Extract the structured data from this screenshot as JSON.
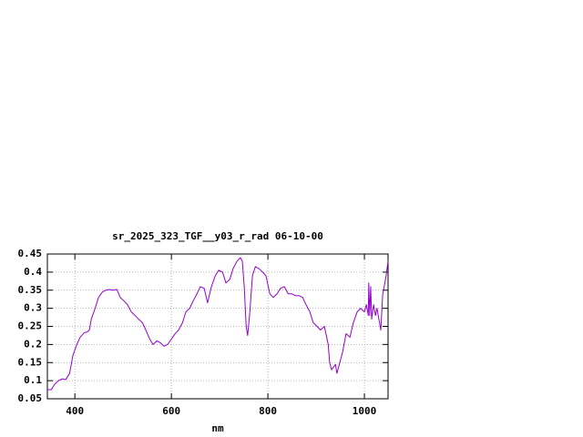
{
  "chart_data": {
    "type": "line",
    "title": "sr_2025_323_TGF__y03_r_rad 06-10-00",
    "x_label": "nm",
    "x": [
      343,
      351,
      358,
      366,
      374,
      381,
      389,
      396,
      404,
      411,
      419,
      426,
      430,
      434,
      442,
      449,
      457,
      464,
      472,
      479,
      487,
      494,
      502,
      509,
      517,
      525,
      532,
      540,
      547,
      555,
      562,
      570,
      577,
      585,
      592,
      600,
      608,
      615,
      623,
      630,
      638,
      645,
      653,
      660,
      668,
      675,
      683,
      691,
      698,
      706,
      713,
      721,
      728,
      736,
      743,
      747,
      751,
      755,
      758,
      762,
      768,
      774,
      781,
      789,
      796,
      804,
      811,
      819,
      826,
      834,
      842,
      849,
      857,
      864,
      872,
      879,
      887,
      894,
      902,
      909,
      917,
      925,
      928,
      932,
      940,
      943,
      947,
      955,
      962,
      970,
      977,
      985,
      992,
      1000,
      1004,
      1008,
      1009,
      1011,
      1013,
      1015,
      1019,
      1023,
      1026,
      1030,
      1034,
      1038,
      1041,
      1045,
      1049
    ],
    "series": [
      {
        "color": "#9400d3",
        "values": [
          0.075,
          0.075,
          0.09,
          0.1,
          0.105,
          0.103,
          0.12,
          0.17,
          0.2,
          0.22,
          0.232,
          0.235,
          0.24,
          0.27,
          0.3,
          0.33,
          0.345,
          0.35,
          0.352,
          0.35,
          0.352,
          0.33,
          0.32,
          0.31,
          0.29,
          0.28,
          0.27,
          0.26,
          0.24,
          0.215,
          0.2,
          0.21,
          0.205,
          0.195,
          0.2,
          0.215,
          0.23,
          0.24,
          0.26,
          0.29,
          0.3,
          0.32,
          0.34,
          0.36,
          0.355,
          0.315,
          0.36,
          0.39,
          0.405,
          0.4,
          0.37,
          0.38,
          0.41,
          0.43,
          0.44,
          0.43,
          0.36,
          0.25,
          0.225,
          0.28,
          0.39,
          0.415,
          0.41,
          0.4,
          0.39,
          0.34,
          0.33,
          0.34,
          0.355,
          0.36,
          0.34,
          0.34,
          0.335,
          0.335,
          0.33,
          0.31,
          0.29,
          0.26,
          0.25,
          0.24,
          0.25,
          0.2,
          0.15,
          0.13,
          0.145,
          0.12,
          0.14,
          0.18,
          0.23,
          0.22,
          0.26,
          0.29,
          0.3,
          0.29,
          0.31,
          0.28,
          0.37,
          0.28,
          0.36,
          0.27,
          0.31,
          0.28,
          0.3,
          0.27,
          0.24,
          0.34,
          0.36,
          0.39,
          0.43
        ]
      }
    ],
    "xlim": [
      343,
      1049
    ],
    "xticks": [
      400,
      600,
      800,
      1000
    ],
    "ylim": [
      0.05,
      0.45
    ],
    "yticks": [
      0.05,
      0.1,
      0.15,
      0.2,
      0.25,
      0.3,
      0.35,
      0.4,
      0.45
    ],
    "grid": true
  }
}
